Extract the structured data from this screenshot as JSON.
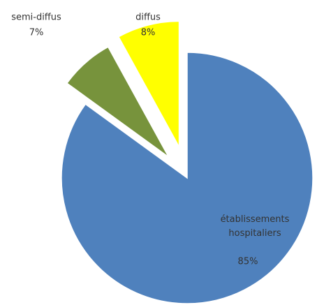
{
  "chart_data": {
    "type": "pie",
    "categories": [
      "établissements hospitaliers",
      "semi-diffus",
      "diffus"
    ],
    "values": [
      85,
      7,
      8
    ],
    "value_labels": [
      "85%",
      "7%",
      "8%"
    ],
    "colors": [
      "#4f81bd",
      "#77933c",
      "#ffff00"
    ]
  }
}
